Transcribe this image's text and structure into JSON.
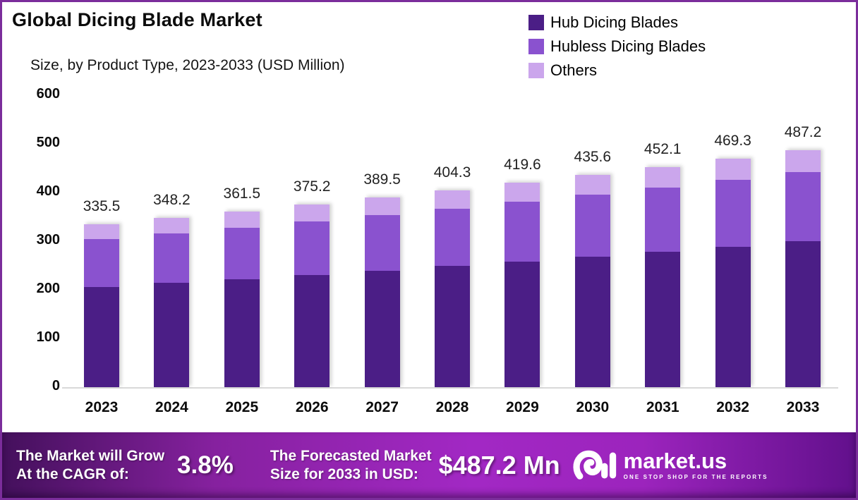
{
  "header": {
    "title": "Global Dicing Blade Market",
    "subtitle": "Size, by Product Type, 2023-2033 (USD Million)"
  },
  "colors": {
    "frame_border": "#7b2d9b",
    "hub": "#4b1e86",
    "hubless": "#8a52cf",
    "others": "#cba6ec",
    "axis_line": "#d9d9d9"
  },
  "chart_data": {
    "type": "bar",
    "stacked": true,
    "title": "Global Dicing Blade Market Size, by Product Type, 2023-2033 (USD Million)",
    "categories": [
      "2023",
      "2024",
      "2025",
      "2026",
      "2027",
      "2028",
      "2029",
      "2030",
      "2031",
      "2032",
      "2033"
    ],
    "series": [
      {
        "name": "Hub Dicing Blades",
        "color": "#4b1e86",
        "values": [
          206.3,
          214.1,
          222.3,
          230.7,
          239.5,
          248.6,
          258.1,
          267.9,
          278.0,
          288.6,
          299.6
        ]
      },
      {
        "name": "Hubless Dicing Blades",
        "color": "#8a52cf",
        "values": [
          98.0,
          101.7,
          105.6,
          109.6,
          113.7,
          118.1,
          122.5,
          127.2,
          132.0,
          137.0,
          142.3
        ]
      },
      {
        "name": "Others",
        "color": "#cba6ec",
        "values": [
          31.2,
          32.4,
          33.6,
          34.9,
          36.3,
          37.6,
          39.0,
          40.5,
          42.1,
          43.7,
          45.3
        ]
      }
    ],
    "totals": [
      335.5,
      348.2,
      361.5,
      375.2,
      389.5,
      404.3,
      419.6,
      435.6,
      452.1,
      469.3,
      487.2
    ],
    "xlabel": "",
    "ylabel": "",
    "ylim": [
      0,
      600
    ],
    "yticks": [
      0,
      100,
      200,
      300,
      400,
      500,
      600
    ],
    "grid": false,
    "legend_position": "top-right",
    "value_labels": "total above each bar"
  },
  "banner": {
    "cagr_label_line1": "The Market will Grow",
    "cagr_label_line2": "At the CAGR of:",
    "cagr_value": "3.8%",
    "forecast_label_line1": "The Forecasted Market",
    "forecast_label_line2": "Size for 2033 in USD:",
    "forecast_value": "$487.2 Mn",
    "logo_text": "market.us",
    "logo_tagline": "ONE STOP SHOP FOR THE REPORTS",
    "gradient": [
      "#44105c",
      "#86219f",
      "#a228c4",
      "#9c24bd",
      "#62108c"
    ]
  }
}
